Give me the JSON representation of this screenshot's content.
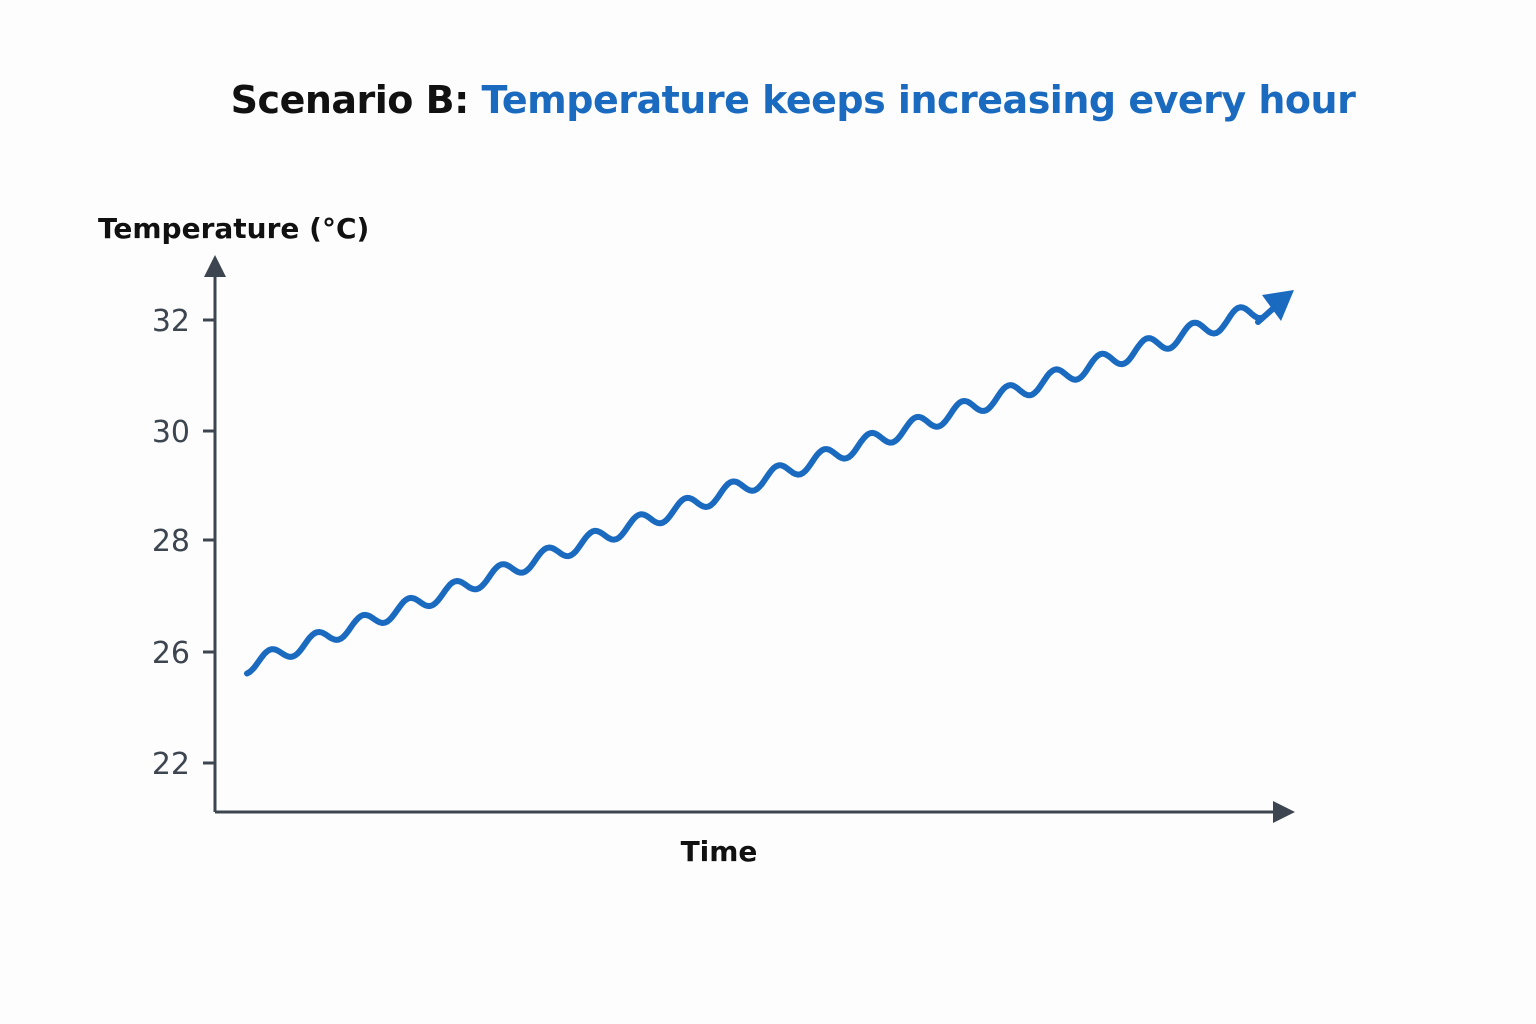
{
  "title": {
    "prefix": "Scenario B:",
    "main": "Temperature keeps increasing every hour"
  },
  "colors": {
    "line": "#1a6ac0",
    "axis": "#3d4650",
    "title_accent": "#1a6ac0",
    "text": "#111111"
  },
  "chart_data": {
    "type": "line",
    "title": "Scenario B: Temperature keeps increasing every hour",
    "xlabel": "Time",
    "ylabel": "Temperature (°C)",
    "yticks": [
      {
        "label": "22"
      },
      {
        "label": "26"
      },
      {
        "label": "28"
      },
      {
        "label": "30"
      },
      {
        "label": "32"
      }
    ],
    "series": [
      {
        "name": "Temperature",
        "start_value": 25.5,
        "end_value": 32.2,
        "wave_count": 22,
        "trend": "increasing",
        "end_marker": "arrow"
      }
    ]
  }
}
